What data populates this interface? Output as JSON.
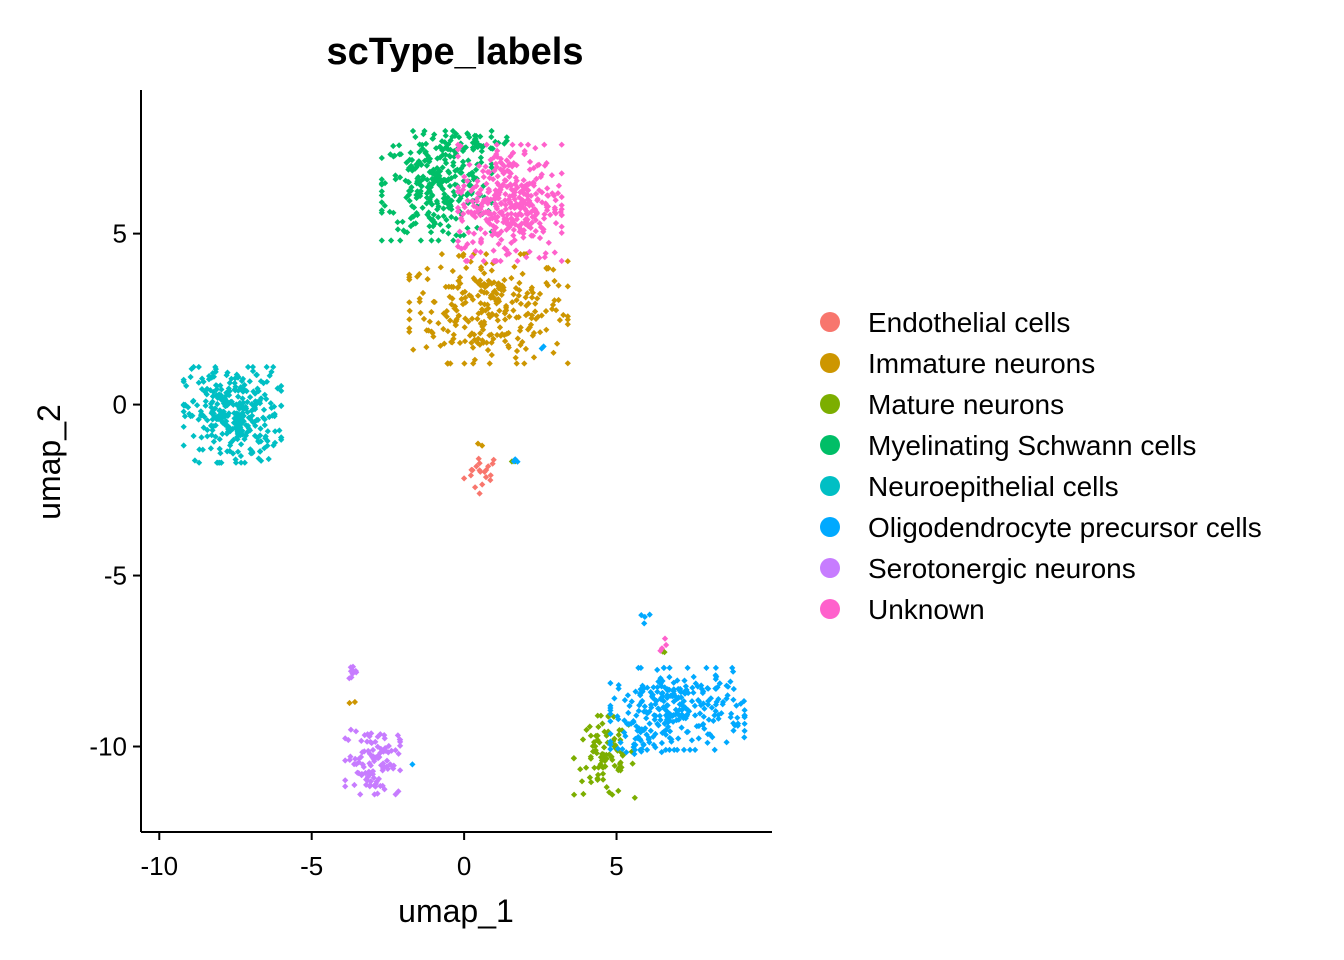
{
  "chart_data": {
    "type": "scatter",
    "title": "scType_labels",
    "xlabel": "umap_1",
    "ylabel": "umap_2",
    "xlim": [
      -10.6,
      10.1
    ],
    "ylim": [
      -12.5,
      9.2
    ],
    "x_ticks": [
      -10,
      -5,
      0,
      5
    ],
    "y_ticks": [
      -10,
      -5,
      0,
      5
    ],
    "grid": false,
    "legend_position": "right",
    "series": [
      {
        "name": "Endothelial cells",
        "color": "#F8766D",
        "clusters": [
          {
            "cx": 0.6,
            "cy": -2.0,
            "sx": 0.3,
            "sy": 0.3,
            "n": 20
          }
        ]
      },
      {
        "name": "Immature neurons",
        "color": "#CD9600",
        "clusters": [
          {
            "cx": 0.8,
            "cy": 2.8,
            "sx": 1.3,
            "sy": 0.8,
            "n": 280
          },
          {
            "cx": 0.5,
            "cy": -1.2,
            "sx": 0.1,
            "sy": 0.1,
            "n": 2
          },
          {
            "cx": -3.6,
            "cy": -8.7,
            "sx": 0.1,
            "sy": 0.1,
            "n": 2
          }
        ]
      },
      {
        "name": "Mature neurons",
        "color": "#7CAE00",
        "clusters": [
          {
            "cx": 4.6,
            "cy": -10.3,
            "sx": 0.5,
            "sy": 0.6,
            "n": 90
          },
          {
            "cx": 1.6,
            "cy": -1.7,
            "sx": 0.05,
            "sy": 0.05,
            "n": 2
          },
          {
            "cx": 6.5,
            "cy": -7.3,
            "sx": 0.1,
            "sy": 0.1,
            "n": 2
          }
        ]
      },
      {
        "name": "Myelinating Schwann cells",
        "color": "#00BE67",
        "clusters": [
          {
            "cx": -0.9,
            "cy": 6.4,
            "sx": 0.9,
            "sy": 0.8,
            "n": 300
          },
          {
            "cx": 0.4,
            "cy": 7.7,
            "sx": 0.5,
            "sy": 0.15,
            "n": 40
          }
        ]
      },
      {
        "name": "Neuroepithelial cells",
        "color": "#00BFC4",
        "clusters": [
          {
            "cx": -7.6,
            "cy": -0.3,
            "sx": 0.8,
            "sy": 0.7,
            "n": 330
          }
        ]
      },
      {
        "name": "Oligodendrocyte precursor cells",
        "color": "#00A9FF",
        "clusters": [
          {
            "cx": 7.0,
            "cy": -8.9,
            "sx": 1.1,
            "sy": 0.6,
            "n": 270
          },
          {
            "cx": 5.8,
            "cy": -9.8,
            "sx": 0.5,
            "sy": 0.3,
            "n": 40
          },
          {
            "cx": 5.9,
            "cy": -6.2,
            "sx": 0.1,
            "sy": 0.1,
            "n": 4
          },
          {
            "cx": 1.7,
            "cy": -1.7,
            "sx": 0.05,
            "sy": 0.05,
            "n": 3
          },
          {
            "cx": -1.7,
            "cy": -10.6,
            "sx": 0.05,
            "sy": 0.05,
            "n": 1
          },
          {
            "cx": 2.6,
            "cy": 1.7,
            "sx": 0.05,
            "sy": 0.05,
            "n": 2
          }
        ]
      },
      {
        "name": "Serotonergic neurons",
        "color": "#C77CFF",
        "clusters": [
          {
            "cx": -3.0,
            "cy": -10.4,
            "sx": 0.45,
            "sy": 0.5,
            "n": 110
          },
          {
            "cx": -3.7,
            "cy": -7.8,
            "sx": 0.08,
            "sy": 0.12,
            "n": 10
          }
        ]
      },
      {
        "name": "Unknown",
        "color": "#FF61CC",
        "clusters": [
          {
            "cx": 1.5,
            "cy": 5.9,
            "sx": 0.85,
            "sy": 0.85,
            "n": 380
          },
          {
            "cx": 6.5,
            "cy": -7.0,
            "sx": 0.08,
            "sy": 0.1,
            "n": 4
          }
        ]
      }
    ]
  }
}
